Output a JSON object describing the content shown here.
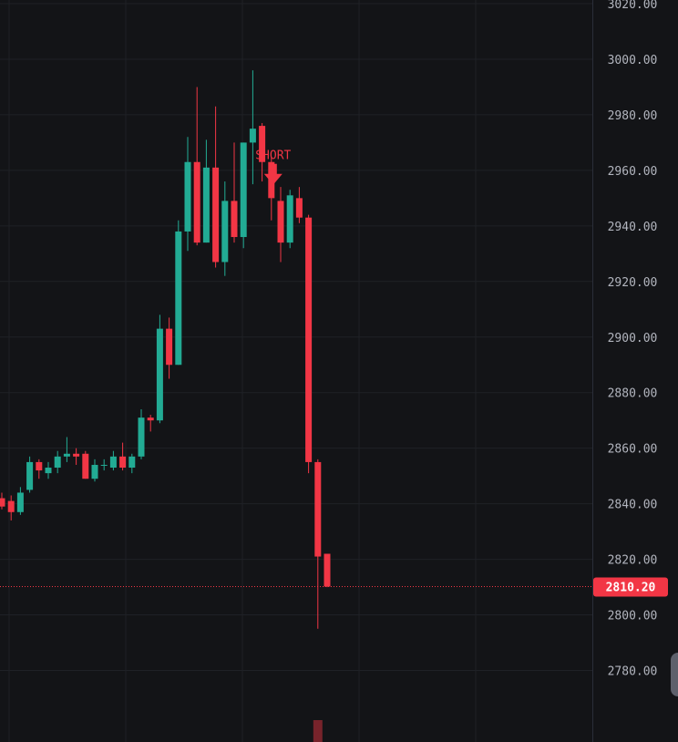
{
  "chart_data": {
    "type": "candlestick",
    "ylim": [
      2770,
      3020
    ],
    "y_ticks": [
      "3020.00",
      "3000.00",
      "2980.00",
      "2960.00",
      "2940.00",
      "2920.00",
      "2900.00",
      "2880.00",
      "2860.00",
      "2840.00",
      "2820.00",
      "2800.00",
      "2780.00"
    ],
    "grid": true,
    "colors": {
      "up": "#22ab94",
      "down": "#f23645",
      "background": "#131417",
      "grid": "#1f2126"
    },
    "candles": [
      {
        "o": 2842,
        "h": 2844,
        "l": 2838,
        "c": 2839
      },
      {
        "o": 2841,
        "h": 2843,
        "l": 2834,
        "c": 2837
      },
      {
        "o": 2837,
        "h": 2846,
        "l": 2836,
        "c": 2844
      },
      {
        "o": 2845,
        "h": 2857,
        "l": 2844,
        "c": 2855
      },
      {
        "o": 2855,
        "h": 2856,
        "l": 2849,
        "c": 2852
      },
      {
        "o": 2851,
        "h": 2855,
        "l": 2849,
        "c": 2853
      },
      {
        "o": 2853,
        "h": 2859,
        "l": 2851,
        "c": 2857
      },
      {
        "o": 2857,
        "h": 2864,
        "l": 2855,
        "c": 2858
      },
      {
        "o": 2858,
        "h": 2860,
        "l": 2854,
        "c": 2857
      },
      {
        "o": 2858,
        "h": 2859,
        "l": 2849,
        "c": 2849
      },
      {
        "o": 2849,
        "h": 2856,
        "l": 2848,
        "c": 2854
      },
      {
        "o": 2854,
        "h": 2856,
        "l": 2852,
        "c": 2854
      },
      {
        "o": 2853,
        "h": 2859,
        "l": 2852,
        "c": 2857
      },
      {
        "o": 2857,
        "h": 2862,
        "l": 2852,
        "c": 2853
      },
      {
        "o": 2853,
        "h": 2858,
        "l": 2851,
        "c": 2857
      },
      {
        "o": 2857,
        "h": 2874,
        "l": 2856,
        "c": 2871
      },
      {
        "o": 2871,
        "h": 2872,
        "l": 2866,
        "c": 2870
      },
      {
        "o": 2870,
        "h": 2908,
        "l": 2869,
        "c": 2903
      },
      {
        "o": 2903,
        "h": 2907,
        "l": 2885,
        "c": 2890
      },
      {
        "o": 2890,
        "h": 2942,
        "l": 2890,
        "c": 2938
      },
      {
        "o": 2938,
        "h": 2972,
        "l": 2931,
        "c": 2963
      },
      {
        "o": 2963,
        "h": 2990,
        "l": 2933,
        "c": 2934
      },
      {
        "o": 2934,
        "h": 2971,
        "l": 2934,
        "c": 2961
      },
      {
        "o": 2961,
        "h": 2983,
        "l": 2925,
        "c": 2927
      },
      {
        "o": 2927,
        "h": 2956,
        "l": 2922,
        "c": 2949
      },
      {
        "o": 2949,
        "h": 2970,
        "l": 2934,
        "c": 2936
      },
      {
        "o": 2936,
        "h": 2970,
        "l": 2932,
        "c": 2970
      },
      {
        "o": 2970,
        "h": 2996,
        "l": 2955,
        "c": 2975
      },
      {
        "o": 2976,
        "h": 2977,
        "l": 2956,
        "c": 2963
      },
      {
        "o": 2963,
        "h": 2965,
        "l": 2942,
        "c": 2950
      },
      {
        "o": 2949,
        "h": 2954,
        "l": 2927,
        "c": 2934
      },
      {
        "o": 2934,
        "h": 2953,
        "l": 2932,
        "c": 2951
      },
      {
        "o": 2950,
        "h": 2954,
        "l": 2941,
        "c": 2943
      },
      {
        "o": 2943,
        "h": 2944,
        "l": 2851,
        "c": 2855
      },
      {
        "o": 2855,
        "h": 2856,
        "l": 2795,
        "c": 2821
      },
      {
        "o": 2822,
        "h": 2822,
        "l": 2810,
        "c": 2810.2
      }
    ],
    "annotations": [
      {
        "text": "SHORT",
        "candle_index": 29,
        "value": 2963,
        "type": "arrow-down",
        "color": "#f23645"
      }
    ],
    "last_price": {
      "value": 2810.2,
      "label": "2810.20",
      "color": "#f23645"
    },
    "volume": [
      {
        "candle_index": 34,
        "color": "#f23645"
      }
    ]
  }
}
